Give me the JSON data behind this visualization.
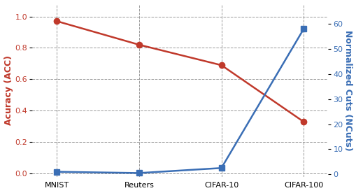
{
  "categories": [
    "MNIST",
    "Reuters",
    "CIFAR-10",
    "CIFAR-100"
  ],
  "acc_values": [
    0.97,
    0.82,
    0.69,
    0.33
  ],
  "ncuts_values": [
    1.0,
    0.5,
    2.5,
    58.0
  ],
  "acc_color": "#c0392b",
  "ncuts_color": "#3a6eb5",
  "acc_label": "Acuracy (ACC)",
  "ncuts_label": "Normalized Cuts (NCuts)",
  "ylim_acc": [
    -0.02,
    1.08
  ],
  "ylim_ncuts": [
    -1.0,
    68.0
  ],
  "yticks_acc": [
    0.0,
    0.2,
    0.4,
    0.6,
    0.8,
    1.0
  ],
  "yticks_ncuts": [
    0,
    10,
    20,
    30,
    40,
    50,
    60
  ],
  "grid_color": "#999999",
  "background_color": "#ffffff",
  "acc_marker": "o",
  "ncuts_marker": "s",
  "linewidth": 1.8,
  "markersize": 6,
  "fontsize_ticks": 8,
  "fontsize_label": 9
}
